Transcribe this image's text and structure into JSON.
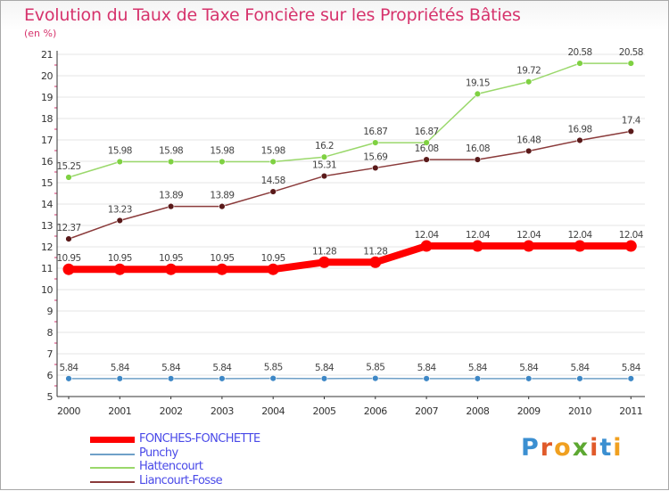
{
  "header": {
    "title": "Evolution du Taux de Taxe Foncière sur les Propriétés Bâties",
    "unit": "(en %)"
  },
  "colors": {
    "title": "#d6336c",
    "axis": "#333333",
    "tick_marks": "#d6336c",
    "grid": "#e4e4e4"
  },
  "logo": {
    "letters": [
      {
        "char": "P",
        "color": "#3b8fd1"
      },
      {
        "char": "r",
        "color": "#e05a2a"
      },
      {
        "char": "o",
        "color": "#f0a020"
      },
      {
        "char": "x",
        "color": "#5da832"
      },
      {
        "char": "i",
        "color": "#e05a2a"
      },
      {
        "char": "t",
        "color": "#3b8fd1"
      },
      {
        "char": "i",
        "color": "#f0a020"
      }
    ]
  },
  "chart_data": {
    "type": "line",
    "title": "Evolution du Taux de Taxe Foncière sur les Propriétés Bâties",
    "ylabel": "(en %)",
    "xlabel": "",
    "categories": [
      "2000",
      "2001",
      "2002",
      "2003",
      "2004",
      "2005",
      "2006",
      "2007",
      "2008",
      "2009",
      "2010",
      "2011"
    ],
    "ylim": [
      5,
      21
    ],
    "yticks": [
      "5",
      "6",
      "7",
      "8",
      "9",
      "10",
      "11",
      "12",
      "13",
      "14",
      "15",
      "16",
      "17",
      "18",
      "19",
      "20",
      "21"
    ],
    "grid": true,
    "legend_position": "bottom-left",
    "series": [
      {
        "name": "FONCHES-FONCHETTE",
        "color": "#ff0000",
        "marker": "#ff0000",
        "width": "thick",
        "values": [
          10.95,
          10.95,
          10.95,
          10.95,
          10.95,
          11.28,
          11.28,
          12.04,
          12.04,
          12.04,
          12.04,
          12.04
        ],
        "labels": [
          "10.95",
          "10.95",
          "10.95",
          "10.95",
          "10.95",
          "11.28",
          "11.28",
          "12.04",
          "12.04",
          "12.04",
          "12.04",
          "12.04"
        ]
      },
      {
        "name": "Punchy",
        "color": "#6fa0c8",
        "marker": "#3d87c6",
        "width": "thin",
        "values": [
          5.84,
          5.84,
          5.84,
          5.84,
          5.85,
          5.84,
          5.85,
          5.84,
          5.84,
          5.84,
          5.84,
          5.84
        ],
        "labels": [
          "5.84",
          "5.84",
          "5.84",
          "5.84",
          "5.85",
          "5.84",
          "5.85",
          "5.84",
          "5.84",
          "5.84",
          "5.84",
          "5.84"
        ]
      },
      {
        "name": "Hattencourt",
        "color": "#9ad86b",
        "marker": "#7fd142",
        "width": "thin",
        "values": [
          15.25,
          15.98,
          15.98,
          15.98,
          15.98,
          16.2,
          16.87,
          16.87,
          19.15,
          19.72,
          20.58,
          20.58
        ],
        "labels": [
          "15.25",
          "15.98",
          "15.98",
          "15.98",
          "15.98",
          "16.2",
          "16.87",
          "16.87",
          "19.15",
          "19.72",
          "20.58",
          "20.58"
        ]
      },
      {
        "name": "Liancourt-Fosse",
        "color": "#8a3a3a",
        "marker": "#5a1a1a",
        "width": "thin",
        "values": [
          12.37,
          13.23,
          13.89,
          13.89,
          14.58,
          15.31,
          15.69,
          16.08,
          16.08,
          16.48,
          16.98,
          17.4
        ],
        "labels": [
          "12.37",
          "13.23",
          "13.89",
          "13.89",
          "14.58",
          "15.31",
          "15.69",
          "16.08",
          "16.08",
          "16.48",
          "16.98",
          "17.4"
        ]
      }
    ]
  }
}
